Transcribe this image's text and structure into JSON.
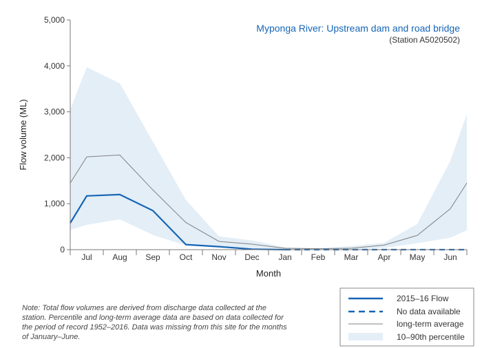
{
  "chart_data": {
    "type": "line",
    "title": "Myponga River: Upstream dam and road bridge",
    "subtitle": "(Station A5020502)",
    "xlabel": "Month",
    "ylabel": "Flow volume (ML)",
    "ylim": [
      0,
      5000
    ],
    "yticks": [
      0,
      1000,
      2000,
      3000,
      4000,
      5000
    ],
    "ytick_labels": [
      "0",
      "1,000",
      "2,000",
      "3,000",
      "4,000",
      "5,000"
    ],
    "categories": [
      "Jul",
      "Aug",
      "Sep",
      "Oct",
      "Nov",
      "Dec",
      "Jan",
      "Feb",
      "Mar",
      "Apr",
      "May",
      "Jun"
    ],
    "x_edge_values": {
      "band_lower": [
        430,
        420
      ],
      "band_upper": [
        3050,
        2950
      ],
      "longterm_average": [
        1450,
        1450
      ],
      "flow_2015_16": [
        580,
        null
      ]
    },
    "series": [
      {
        "name": "10–90th percentile",
        "kind": "band",
        "lower": [
          540,
          660,
          320,
          90,
          50,
          10,
          0,
          0,
          5,
          40,
          140,
          260
        ],
        "upper": [
          3970,
          3620,
          2350,
          1080,
          290,
          200,
          50,
          30,
          80,
          150,
          560,
          1930
        ]
      },
      {
        "name": "long-term average",
        "kind": "line",
        "values": [
          2020,
          2060,
          1300,
          590,
          180,
          120,
          30,
          20,
          30,
          100,
          310,
          890
        ]
      },
      {
        "name": "2015–16 Flow",
        "kind": "line",
        "values": [
          1170,
          1200,
          850,
          110,
          65,
          10,
          0,
          null,
          null,
          null,
          null,
          null
        ]
      },
      {
        "name": "No data available",
        "kind": "dashed",
        "values": [
          null,
          null,
          null,
          null,
          null,
          null,
          0,
          0,
          0,
          0,
          0,
          0
        ]
      }
    ],
    "legend": {
      "placement": "bottom-right",
      "entries": [
        "2015–16 Flow",
        "No data available",
        "long-term average",
        "10–90th percentile"
      ]
    },
    "grid": false,
    "colors": {
      "flow": "#1565b5",
      "average": "#808080",
      "band": "#e3eef7",
      "axis": "#777777",
      "title": "#1565b5"
    }
  },
  "note": "Note: Total flow volumes are derived from discharge data collected at the station. Percentile and long-term average data are based on data collected for the period of record 1952–2016. Data was missing from this site for the months of January–June."
}
